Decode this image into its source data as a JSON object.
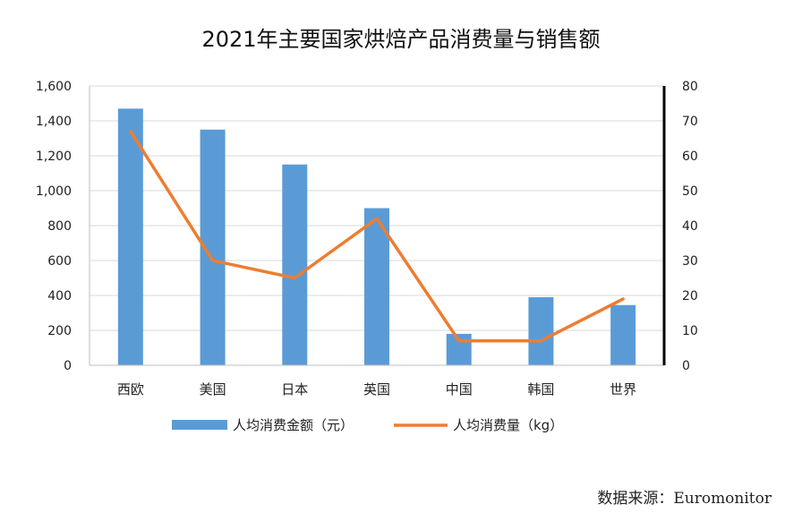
{
  "chart_data": {
    "type": "bar",
    "title": "2021年主要国家烘焙产品消费量与销售额",
    "categories": [
      "西欧",
      "美国",
      "日本",
      "英国",
      "中国",
      "韩国",
      "世界"
    ],
    "series": [
      {
        "name": "人均消费金额（元）",
        "type": "bar",
        "axis": "left",
        "color": "#5b9bd5",
        "values": [
          1470,
          1350,
          1150,
          900,
          180,
          390,
          345
        ]
      },
      {
        "name": "人均消费量（kg）",
        "type": "line",
        "axis": "right",
        "color": "#ed7d31",
        "values": [
          67,
          30,
          25,
          42,
          7,
          7,
          19
        ]
      }
    ],
    "y_left": {
      "min": 0,
      "max": 1600,
      "step": 200,
      "tick_labels": [
        "0",
        "200",
        "400",
        "600",
        "800",
        "1,000",
        "1,200",
        "1,400",
        "1,600"
      ]
    },
    "y_right": {
      "min": 0,
      "max": 80,
      "step": 10,
      "tick_labels": [
        "0",
        "10",
        "20",
        "30",
        "40",
        "50",
        "60",
        "70",
        "80"
      ]
    },
    "grid": true,
    "legend": "bottom"
  },
  "source_text": "数据来源：Euromonitor"
}
